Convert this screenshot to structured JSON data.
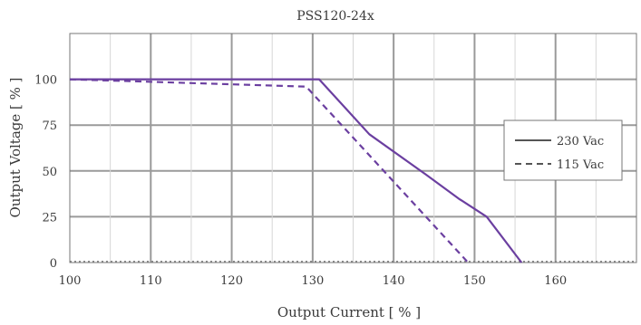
{
  "chart_data": {
    "type": "line",
    "title": "PSS120-24x",
    "xlabel": "Output Current [ % ]",
    "ylabel": "Output Voltage [ % ]",
    "xlim": [
      100,
      170
    ],
    "ylim": [
      0,
      125
    ],
    "xticks": [
      100,
      110,
      120,
      130,
      140,
      150,
      160
    ],
    "yticks": [
      0,
      25,
      50,
      75,
      100
    ],
    "grid": true,
    "legend_position": "right",
    "series": [
      {
        "name": "230 Vac",
        "style": "solid",
        "color": "#6b3fa0",
        "x": [
          100,
          130.8,
          137,
          144,
          148,
          151.5,
          155.8
        ],
        "y": [
          100,
          100,
          70,
          48,
          35,
          25,
          0
        ]
      },
      {
        "name": "115 Vac",
        "style": "dashed",
        "color": "#6b3fa0",
        "x": [
          100,
          129.2,
          149.2
        ],
        "y": [
          100,
          96,
          0
        ]
      }
    ]
  }
}
